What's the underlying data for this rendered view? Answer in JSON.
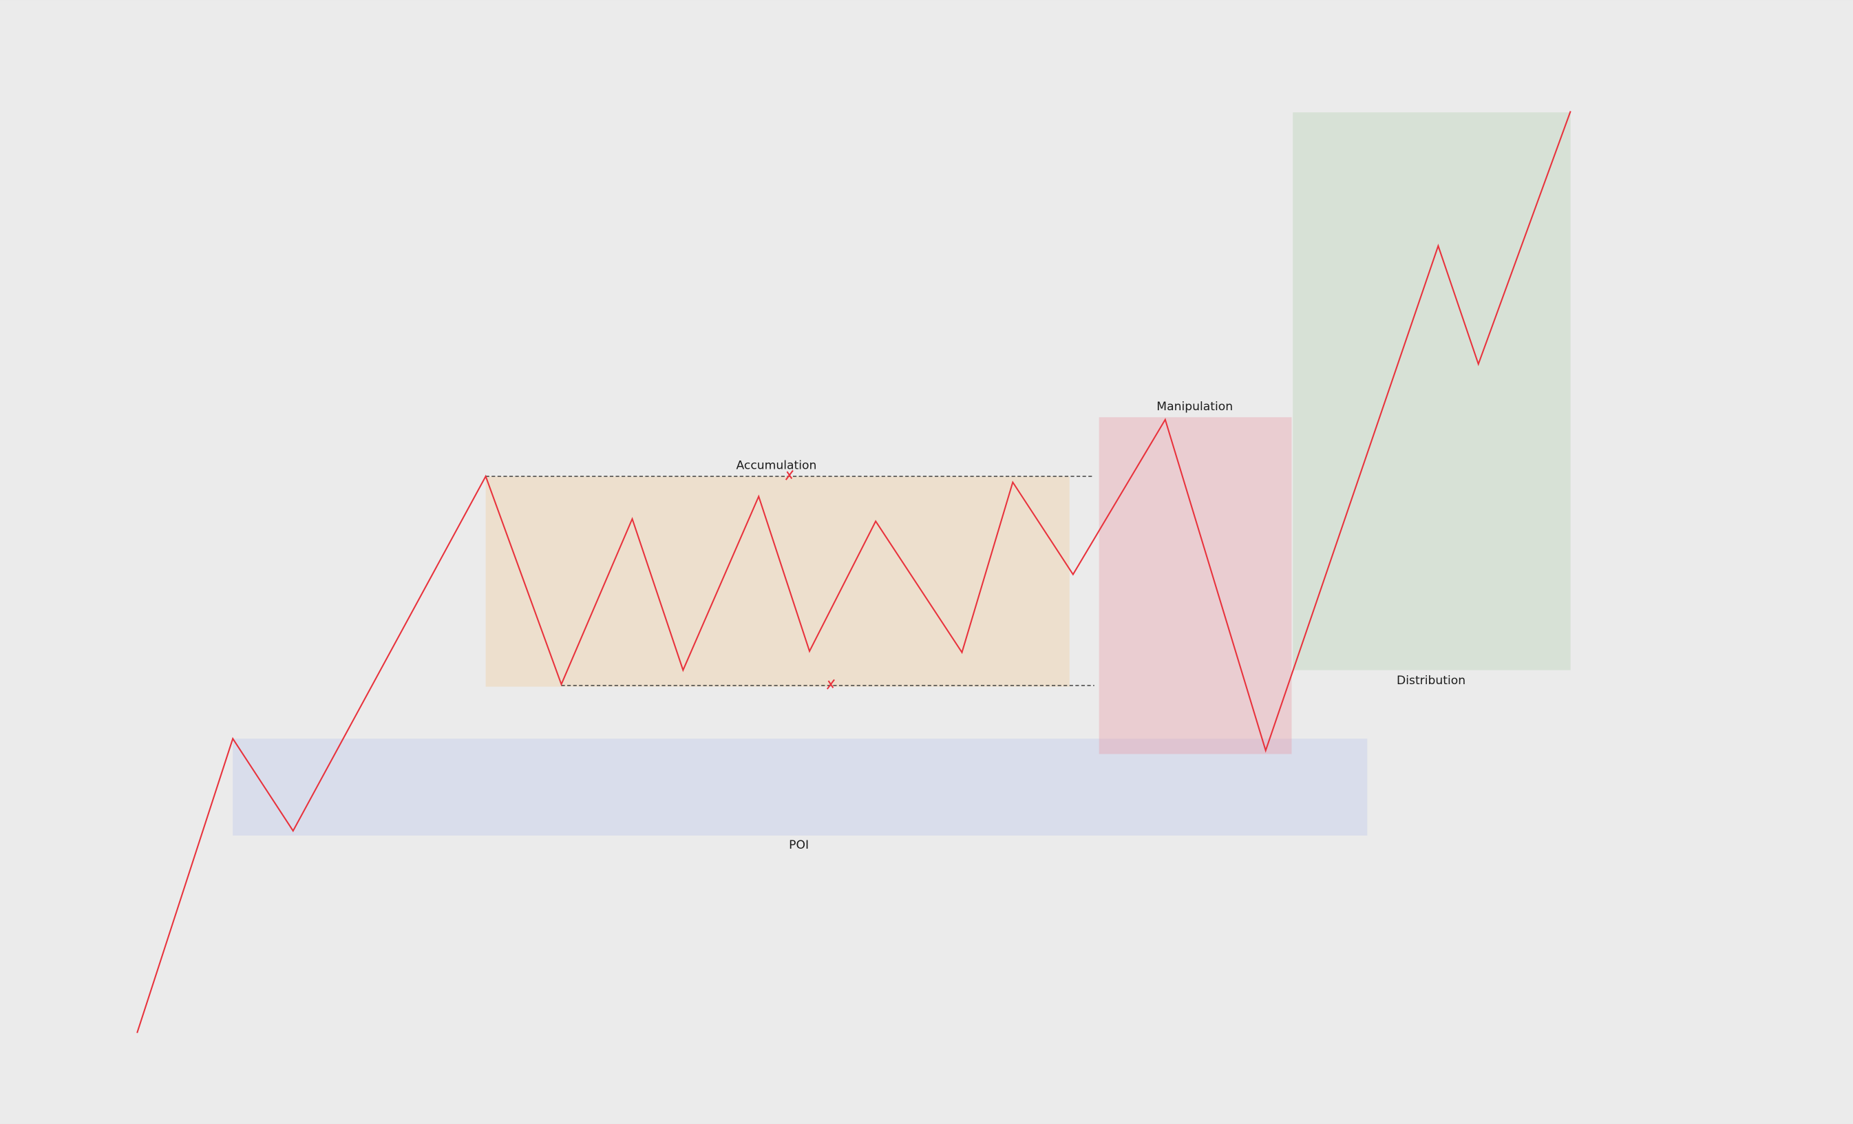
{
  "zones": {
    "accumulation": "Accumulation",
    "manipulation": "Manipulation",
    "distribution": "Distribution",
    "poi": "POI"
  }
}
